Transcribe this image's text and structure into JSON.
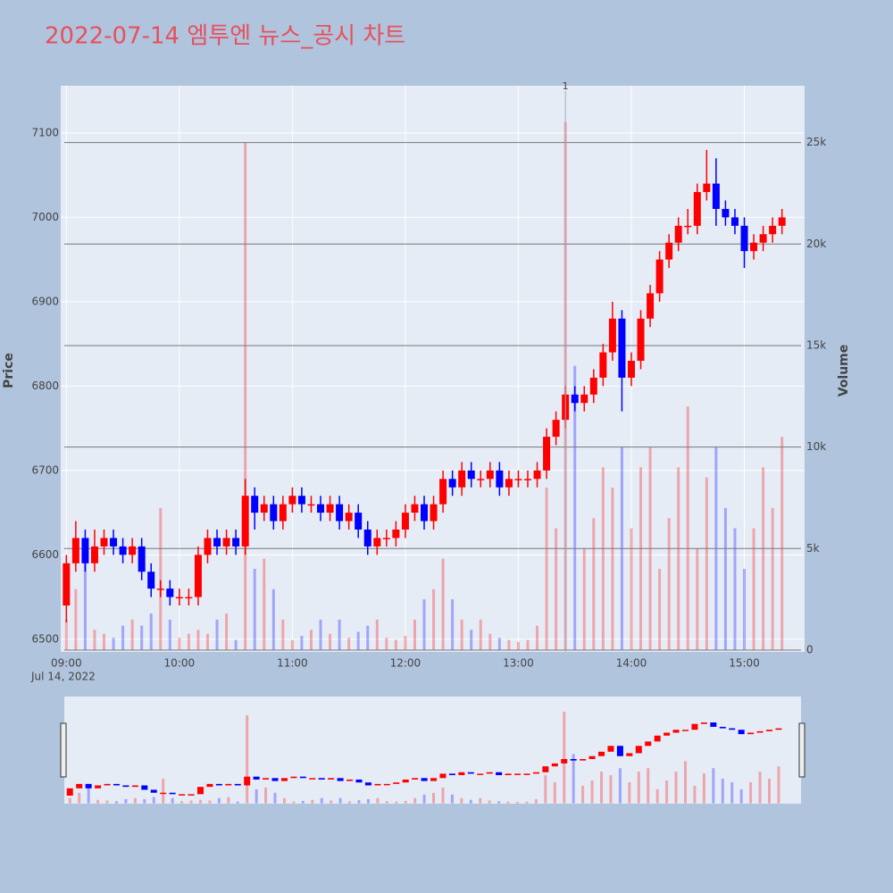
{
  "chart_data": {
    "type": "candlestick",
    "title": "2022-07-14 엠투엔 뉴스_공시 차트",
    "y_label": "Price",
    "y2_label": "Volume",
    "x_date_label": "Jul 14, 2022",
    "annotation": {
      "x": "13:25",
      "text": "1"
    },
    "x": [
      "09:00",
      "09:05",
      "09:10",
      "09:15",
      "09:20",
      "09:25",
      "09:30",
      "09:35",
      "09:40",
      "09:45",
      "09:50",
      "09:55",
      "10:00",
      "10:05",
      "10:10",
      "10:15",
      "10:20",
      "10:25",
      "10:30",
      "10:35",
      "10:40",
      "10:45",
      "10:50",
      "10:55",
      "11:00",
      "11:05",
      "11:10",
      "11:15",
      "11:20",
      "11:25",
      "11:30",
      "11:35",
      "11:40",
      "11:45",
      "11:50",
      "11:55",
      "12:00",
      "12:05",
      "12:10",
      "12:15",
      "12:20",
      "12:25",
      "12:30",
      "12:35",
      "12:40",
      "12:45",
      "12:50",
      "12:55",
      "13:00",
      "13:05",
      "13:10",
      "13:15",
      "13:20",
      "13:25",
      "13:30",
      "13:35",
      "13:40",
      "13:45",
      "13:50",
      "13:55",
      "14:00",
      "14:05",
      "14:10",
      "14:15",
      "14:20",
      "14:25",
      "14:30",
      "14:35",
      "14:40",
      "14:45",
      "14:50",
      "14:55",
      "15:00",
      "15:05",
      "15:10",
      "15:15",
      "15:20"
    ],
    "open": [
      6540,
      6590,
      6620,
      6590,
      6610,
      6620,
      6610,
      6600,
      6610,
      6580,
      6560,
      6560,
      6550,
      6550,
      6550,
      6600,
      6620,
      6610,
      6620,
      6610,
      6670,
      6650,
      6660,
      6640,
      6660,
      6670,
      6660,
      6660,
      6650,
      6660,
      6640,
      6650,
      6630,
      6610,
      6620,
      6620,
      6630,
      6650,
      6660,
      6640,
      6660,
      6690,
      6680,
      6700,
      6690,
      6690,
      6700,
      6680,
      6690,
      6690,
      6690,
      6700,
      6740,
      6760,
      6790,
      6780,
      6790,
      6810,
      6840,
      6880,
      6810,
      6830,
      6880,
      6910,
      6950,
      6970,
      6990,
      6990,
      7030,
      7040,
      7010,
      7000,
      6990,
      6960,
      6970,
      6980,
      6990
    ],
    "high": [
      6600,
      6640,
      6630,
      6630,
      6630,
      6630,
      6620,
      6620,
      6620,
      6590,
      6570,
      6570,
      6560,
      6560,
      6610,
      6630,
      6630,
      6630,
      6630,
      6690,
      6680,
      6670,
      6670,
      6670,
      6680,
      6680,
      6670,
      6670,
      6670,
      6670,
      6660,
      6660,
      6640,
      6630,
      6630,
      6640,
      6660,
      6670,
      6670,
      6670,
      6700,
      6700,
      6710,
      6710,
      6700,
      6710,
      6710,
      6700,
      6700,
      6700,
      6710,
      6750,
      6770,
      6800,
      6800,
      6800,
      6820,
      6850,
      6900,
      6890,
      6840,
      6890,
      6920,
      6960,
      6980,
      7000,
      7010,
      7040,
      7080,
      7070,
      7020,
      7010,
      7000,
      6980,
      6990,
      7000,
      7010
    ],
    "low": [
      6520,
      6580,
      6580,
      6580,
      6600,
      6600,
      6590,
      6590,
      6570,
      6550,
      6550,
      6540,
      6540,
      6540,
      6540,
      6590,
      6600,
      6600,
      6600,
      6600,
      6630,
      6640,
      6630,
      6630,
      6650,
      6650,
      6650,
      6640,
      6640,
      6630,
      6630,
      6620,
      6600,
      6600,
      6610,
      6610,
      6620,
      6640,
      6630,
      6630,
      6650,
      6670,
      6670,
      6680,
      6680,
      6680,
      6670,
      6670,
      6680,
      6680,
      6680,
      6690,
      6730,
      6750,
      6770,
      6770,
      6780,
      6800,
      6830,
      6770,
      6800,
      6820,
      6870,
      6900,
      6940,
      6960,
      6980,
      6980,
      7020,
      6990,
      6990,
      6980,
      6940,
      6950,
      6960,
      6970,
      6980
    ],
    "close": [
      6590,
      6620,
      6590,
      6610,
      6620,
      6610,
      6600,
      6610,
      6580,
      6560,
      6560,
      6550,
      6550,
      6550,
      6600,
      6620,
      6610,
      6620,
      6610,
      6670,
      6650,
      6660,
      6640,
      6660,
      6670,
      6660,
      6660,
      6650,
      6660,
      6640,
      6650,
      6630,
      6610,
      6620,
      6620,
      6630,
      6650,
      6660,
      6640,
      6660,
      6690,
      6680,
      6700,
      6690,
      6690,
      6700,
      6680,
      6690,
      6690,
      6690,
      6700,
      6740,
      6760,
      6790,
      6780,
      6790,
      6810,
      6840,
      6880,
      6810,
      6830,
      6880,
      6910,
      6950,
      6970,
      6990,
      6990,
      7030,
      7040,
      7010,
      7000,
      6990,
      6960,
      6970,
      6980,
      6990,
      7000
    ],
    "volume": [
      1500,
      3000,
      4500,
      1000,
      800,
      600,
      1200,
      1500,
      1200,
      1800,
      7000,
      1500,
      600,
      800,
      1000,
      800,
      1500,
      1800,
      500,
      25000,
      4000,
      4500,
      3000,
      1500,
      500,
      700,
      1000,
      1500,
      800,
      1500,
      600,
      900,
      1200,
      1500,
      600,
      500,
      700,
      1500,
      2500,
      3000,
      4500,
      2500,
      1500,
      1000,
      1500,
      800,
      600,
      500,
      400,
      500,
      1200,
      8000,
      6000,
      26000,
      14000,
      5000,
      6500,
      9000,
      8000,
      10000,
      6000,
      9000,
      10000,
      4000,
      6500,
      9000,
      12000,
      5000,
      8500,
      10000,
      7000,
      6000,
      4000,
      6000,
      9000,
      7000,
      10500
    ],
    "increasing_color": "#ff0000",
    "decreasing_color": "#0000ff",
    "xlim": [
      "08:57",
      "15:32"
    ],
    "xticks": [
      "09:00",
      "10:00",
      "11:00",
      "12:00",
      "13:00",
      "14:00",
      "15:00"
    ],
    "ylim": [
      6485,
      7156
    ],
    "yticks": [
      6500,
      6600,
      6700,
      6800,
      6900,
      7000,
      7100
    ],
    "y2lim": [
      -90,
      27800
    ],
    "y2ticks": [
      0,
      {
        "value": 5000,
        "label": "5k"
      },
      {
        "value": 10000,
        "label": "10k"
      },
      {
        "value": 15000,
        "label": "15k"
      },
      {
        "value": 20000,
        "label": "20k"
      },
      {
        "value": 25000,
        "label": "25k"
      }
    ],
    "grid": true,
    "rangeslider": true
  }
}
